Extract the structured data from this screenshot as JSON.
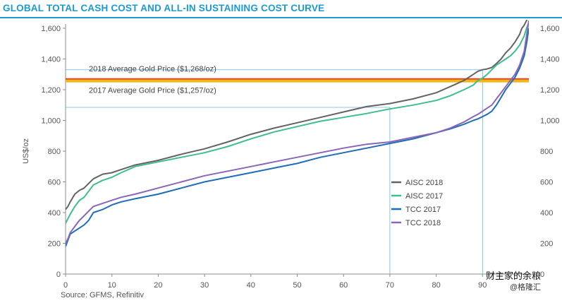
{
  "title": "GLOBAL TOTAL CASH COST AND ALL-IN SUSTAINING COST CURVE",
  "source": "Source: GFMS, Refinitiv",
  "watermark": {
    "line1": "财主家的余粮",
    "line2": "@格隆汇"
  },
  "chart_data": {
    "type": "line",
    "ylabel": "US$/oz",
    "xlim": [
      0,
      100
    ],
    "ylim": [
      0,
      1600
    ],
    "x_ticks": [
      0,
      10,
      20,
      30,
      40,
      50,
      60,
      70,
      80,
      90
    ],
    "y_ticks": [
      0,
      200,
      400,
      600,
      800,
      1000,
      1200,
      1400,
      1600
    ],
    "y_tick_labels": [
      "0",
      "200",
      "400",
      "600",
      "800",
      "1,000",
      "1,200",
      "1,400",
      "1,600"
    ],
    "reference_lines": [
      {
        "label": "2018 Average Gold Price ($1,268/oz)",
        "value": 1268,
        "color": "#e8401c"
      },
      {
        "label": "2017 Average Gold Price ($1,257/oz)",
        "value": 1257,
        "color": "#f2b616"
      }
    ],
    "guide_lines": [
      {
        "y": 1330,
        "x": 90
      },
      {
        "y": 1085,
        "x": 70
      }
    ],
    "series": [
      {
        "name": "AISC 2018",
        "color": "#636363",
        "x": [
          0,
          0.5,
          1,
          2,
          3,
          4,
          5,
          6,
          8,
          10,
          12,
          15,
          20,
          25,
          30,
          35,
          40,
          45,
          50,
          55,
          60,
          65,
          70,
          75,
          80,
          83,
          86,
          88,
          89,
          90,
          91,
          92,
          93,
          94,
          95,
          96,
          97,
          98,
          98.5,
          99,
          99.5,
          100
        ],
        "y": [
          420,
          440,
          470,
          520,
          545,
          560,
          590,
          620,
          650,
          660,
          680,
          710,
          740,
          780,
          815,
          860,
          910,
          950,
          985,
          1020,
          1055,
          1090,
          1110,
          1140,
          1180,
          1220,
          1260,
          1300,
          1320,
          1330,
          1335,
          1345,
          1370,
          1400,
          1440,
          1470,
          1510,
          1560,
          1600,
          1620,
          1650,
          1680
        ]
      },
      {
        "name": "AISC 2017",
        "color": "#3cbf8c",
        "x": [
          0,
          0.5,
          1,
          2,
          3,
          4,
          5,
          6,
          8,
          10,
          12,
          15,
          20,
          25,
          30,
          35,
          40,
          45,
          50,
          55,
          60,
          65,
          70,
          75,
          80,
          83,
          86,
          88,
          89,
          90,
          91,
          92,
          93,
          94,
          95,
          96,
          97,
          98,
          99,
          99.5,
          100
        ],
        "y": [
          330,
          360,
          390,
          440,
          480,
          500,
          540,
          580,
          610,
          630,
          660,
          700,
          730,
          760,
          790,
          830,
          880,
          925,
          960,
          995,
          1020,
          1045,
          1075,
          1100,
          1130,
          1160,
          1200,
          1230,
          1260,
          1275,
          1300,
          1330,
          1360,
          1380,
          1400,
          1420,
          1450,
          1490,
          1550,
          1600,
          1640
        ]
      },
      {
        "name": "TCC 2017",
        "color": "#1f6db5",
        "x": [
          0,
          0.5,
          1,
          2,
          3,
          4,
          5,
          6,
          8,
          10,
          12,
          15,
          20,
          25,
          30,
          35,
          40,
          45,
          50,
          55,
          60,
          65,
          70,
          75,
          80,
          83,
          86,
          88,
          89,
          90,
          91,
          92,
          93,
          94,
          95,
          96,
          97,
          98,
          99,
          99.5,
          100
        ],
        "y": [
          180,
          220,
          260,
          280,
          300,
          320,
          350,
          400,
          420,
          450,
          470,
          490,
          520,
          560,
          600,
          630,
          660,
          690,
          720,
          760,
          790,
          820,
          850,
          880,
          920,
          945,
          975,
          1000,
          1010,
          1025,
          1040,
          1060,
          1100,
          1150,
          1200,
          1240,
          1280,
          1340,
          1420,
          1500,
          1600
        ]
      },
      {
        "name": "TCC 2018",
        "color": "#8a66b8",
        "x": [
          0,
          0.5,
          1,
          2,
          3,
          4,
          5,
          6,
          8,
          10,
          12,
          15,
          20,
          25,
          30,
          35,
          40,
          45,
          50,
          55,
          60,
          65,
          70,
          75,
          80,
          83,
          86,
          88,
          89,
          90,
          91,
          92,
          93,
          94,
          95,
          96,
          97,
          98,
          99,
          99.5,
          100
        ],
        "y": [
          200,
          230,
          270,
          310,
          350,
          380,
          410,
          440,
          460,
          480,
          500,
          520,
          560,
          600,
          640,
          670,
          700,
          730,
          760,
          790,
          820,
          845,
          860,
          890,
          920,
          950,
          990,
          1025,
          1040,
          1060,
          1080,
          1100,
          1140,
          1180,
          1220,
          1260,
          1300,
          1360,
          1450,
          1550,
          1650
        ]
      }
    ],
    "legend": {
      "position": "right-center"
    }
  }
}
